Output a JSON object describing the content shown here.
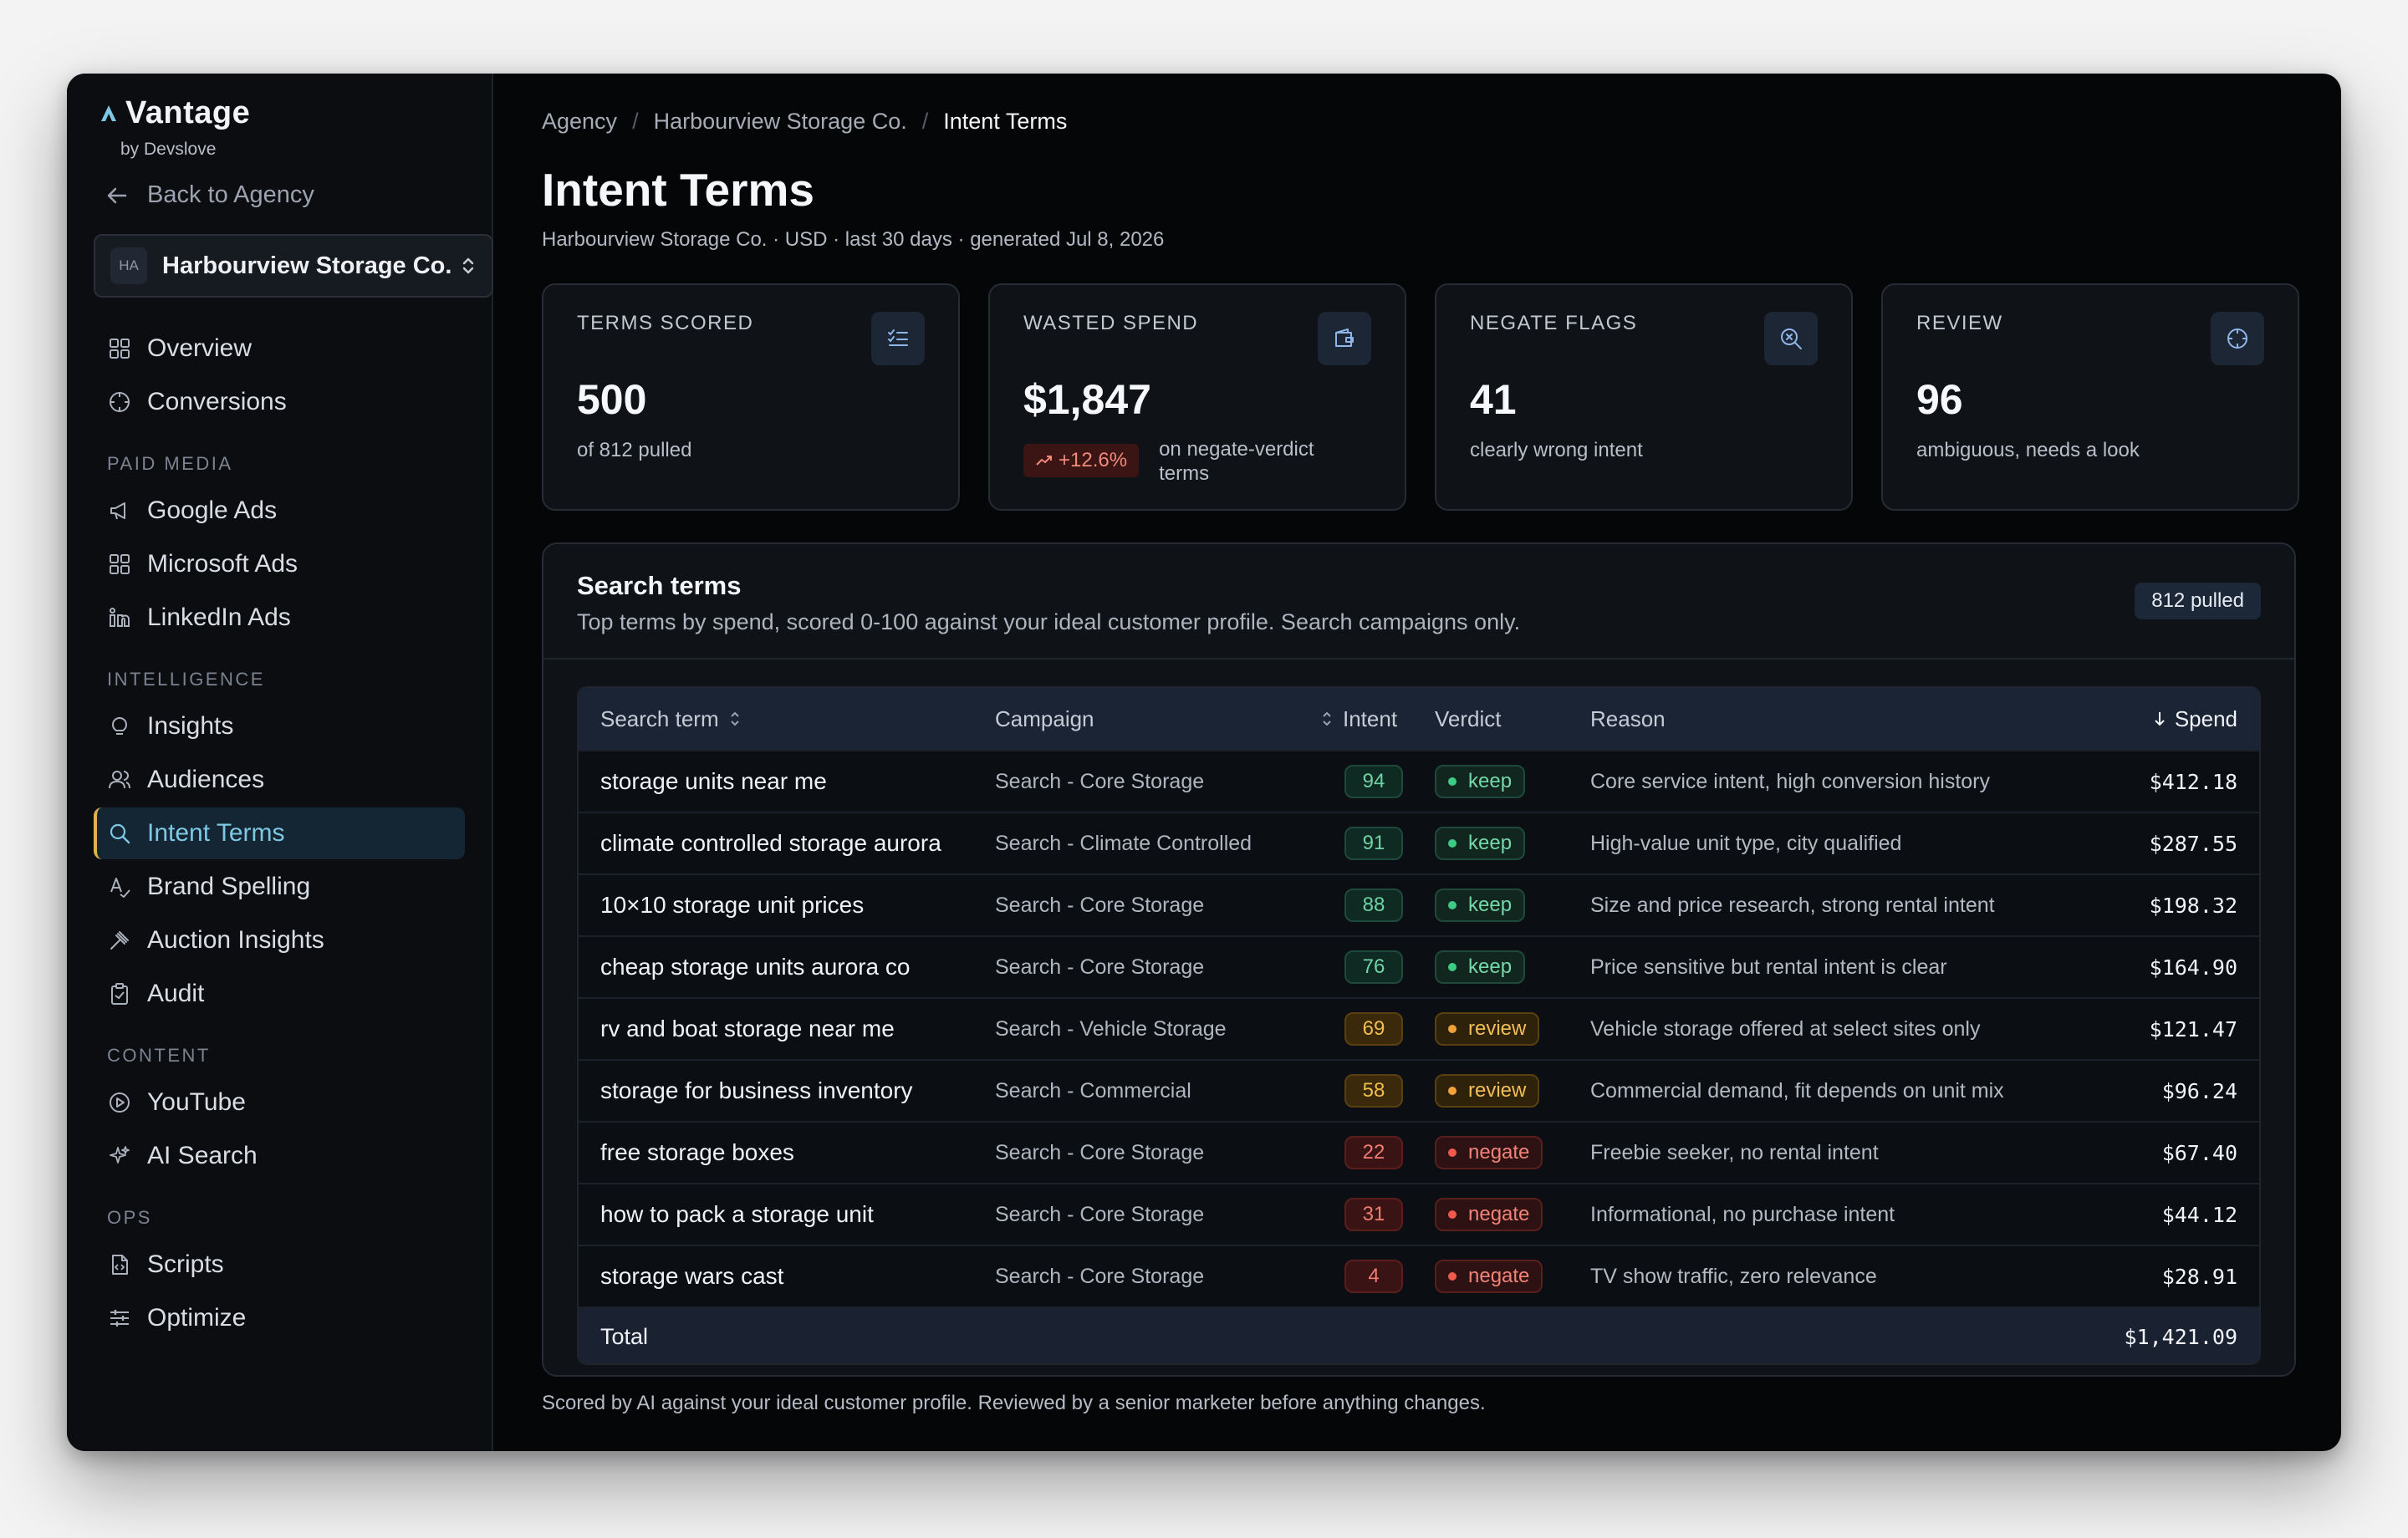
{
  "brand": {
    "name": "Vantage",
    "sub": "by Devslove"
  },
  "sidebar": {
    "back_label": "Back to Agency",
    "account": {
      "badge": "HA",
      "name": "Harbourview Storage Co."
    },
    "top_items": [
      {
        "label": "Overview",
        "icon": "grid-icon"
      },
      {
        "label": "Conversions",
        "icon": "crosshair-icon"
      }
    ],
    "sections": [
      {
        "title": "PAID MEDIA",
        "items": [
          {
            "label": "Google Ads",
            "icon": "megaphone-icon"
          },
          {
            "label": "Microsoft Ads",
            "icon": "grid-icon"
          },
          {
            "label": "LinkedIn Ads",
            "icon": "linkedin-icon"
          }
        ]
      },
      {
        "title": "INTELLIGENCE",
        "items": [
          {
            "label": "Insights",
            "icon": "lightbulb-icon"
          },
          {
            "label": "Audiences",
            "icon": "users-icon"
          },
          {
            "label": "Intent Terms",
            "icon": "search-icon",
            "active": true
          },
          {
            "label": "Brand Spelling",
            "icon": "spellcheck-icon"
          },
          {
            "label": "Auction Insights",
            "icon": "gavel-icon"
          },
          {
            "label": "Audit",
            "icon": "clipboard-check-icon"
          }
        ]
      },
      {
        "title": "CONTENT",
        "items": [
          {
            "label": "YouTube",
            "icon": "play-circle-icon"
          },
          {
            "label": "AI Search",
            "icon": "sparkles-icon"
          }
        ]
      },
      {
        "title": "OPS",
        "items": [
          {
            "label": "Scripts",
            "icon": "file-code-icon"
          },
          {
            "label": "Optimize",
            "icon": "sliders-icon"
          }
        ]
      }
    ]
  },
  "breadcrumb": [
    "Agency",
    "Harbourview Storage Co.",
    "Intent Terms"
  ],
  "page": {
    "title": "Intent Terms",
    "subtitle": "Harbourview Storage Co. · USD · last 30 days · generated Jul 8, 2026"
  },
  "cards": [
    {
      "label": "TERMS SCORED",
      "value": "500",
      "foot": "of 812 pulled",
      "icon": "list-check-icon"
    },
    {
      "label": "WASTED SPEND",
      "value": "$1,847",
      "delta": "+12.6%",
      "foot": "on negate-verdict terms",
      "icon": "wallet-icon"
    },
    {
      "label": "NEGATE FLAGS",
      "value": "41",
      "foot": "clearly wrong intent",
      "icon": "search-x-icon"
    },
    {
      "label": "REVIEW",
      "value": "96",
      "foot": "ambiguous, needs a look",
      "icon": "crosshair-icon"
    }
  ],
  "panel": {
    "title": "Search terms",
    "subtitle": "Top terms by spend, scored 0-100 against your ideal customer profile. Search campaigns only.",
    "pill": "812 pulled"
  },
  "table": {
    "headers": {
      "term": "Search term",
      "campaign": "Campaign",
      "intent": "Intent",
      "verdict": "Verdict",
      "reason": "Reason",
      "spend": "Spend"
    },
    "rows": [
      {
        "term": "storage units near me",
        "campaign": "Search - Core Storage",
        "intent": "94",
        "verdict": "keep",
        "reason": "Core service intent, high conversion history",
        "spend": "$412.18"
      },
      {
        "term": "climate controlled storage aurora",
        "campaign": "Search - Climate Controlled",
        "intent": "91",
        "verdict": "keep",
        "reason": "High-value unit type, city qualified",
        "spend": "$287.55"
      },
      {
        "term": "10×10 storage unit prices",
        "campaign": "Search - Core Storage",
        "intent": "88",
        "verdict": "keep",
        "reason": "Size and price research, strong rental intent",
        "spend": "$198.32"
      },
      {
        "term": "cheap storage units aurora co",
        "campaign": "Search - Core Storage",
        "intent": "76",
        "verdict": "keep",
        "reason": "Price sensitive but rental intent is clear",
        "spend": "$164.90"
      },
      {
        "term": "rv and boat storage near me",
        "campaign": "Search - Vehicle Storage",
        "intent": "69",
        "verdict": "review",
        "reason": "Vehicle storage offered at select sites only",
        "spend": "$121.47"
      },
      {
        "term": "storage for business inventory",
        "campaign": "Search - Commercial",
        "intent": "58",
        "verdict": "review",
        "reason": "Commercial demand, fit depends on unit mix",
        "spend": "$96.24"
      },
      {
        "term": "free storage boxes",
        "campaign": "Search - Core Storage",
        "intent": "22",
        "verdict": "negate",
        "reason": "Freebie seeker, no rental intent",
        "spend": "$67.40"
      },
      {
        "term": "how to pack a storage unit",
        "campaign": "Search - Core Storage",
        "intent": "31",
        "verdict": "negate",
        "reason": "Informational, no purchase intent",
        "spend": "$44.12"
      },
      {
        "term": "storage wars cast",
        "campaign": "Search - Core Storage",
        "intent": "4",
        "verdict": "negate",
        "reason": "TV show traffic, zero relevance",
        "spend": "$28.91"
      }
    ],
    "total_label": "Total",
    "total_value": "$1,421.09"
  },
  "footnote": "Scored by AI against your ideal customer profile. Reviewed by a senior marketer before anything changes.",
  "colors": {
    "accent": "#7ec8e3",
    "keep": "#3ecb86",
    "review": "#f0a23a",
    "negate": "#ef5a4c"
  }
}
